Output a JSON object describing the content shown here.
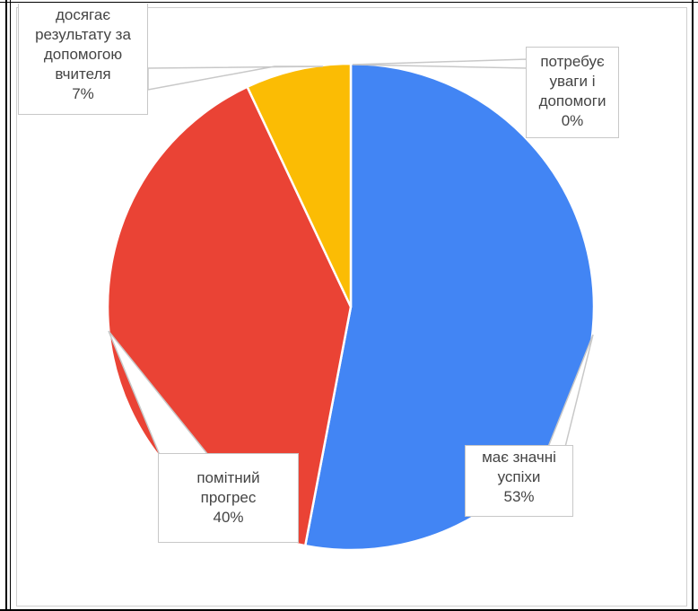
{
  "chart_data": {
    "type": "pie",
    "slices": [
      {
        "name": "має значні успіхи",
        "value": 53,
        "color": "#4285F4",
        "label_lines": [
          "має значні",
          "успіхи"
        ],
        "percent_label": "53%"
      },
      {
        "name": "помітний прогрес",
        "value": 40,
        "color": "#EA4335",
        "label_lines": [
          "помітний",
          "прогрес"
        ],
        "percent_label": "40%"
      },
      {
        "name": "досягає результату за допомогою вчителя",
        "value": 7,
        "color": "#FBBC04",
        "label_lines": [
          "досягає",
          "результату за",
          "допомогою",
          "вчителя"
        ],
        "percent_label": "7%"
      },
      {
        "name": "потребує уваги і допомоги",
        "value": 0,
        "color": "#34A853",
        "label_lines": [
          "потребує",
          "уваги і",
          "допомоги"
        ],
        "percent_label": "0%"
      }
    ],
    "legend": "none",
    "start_angle": "12 o'clock",
    "direction": "clockwise"
  }
}
